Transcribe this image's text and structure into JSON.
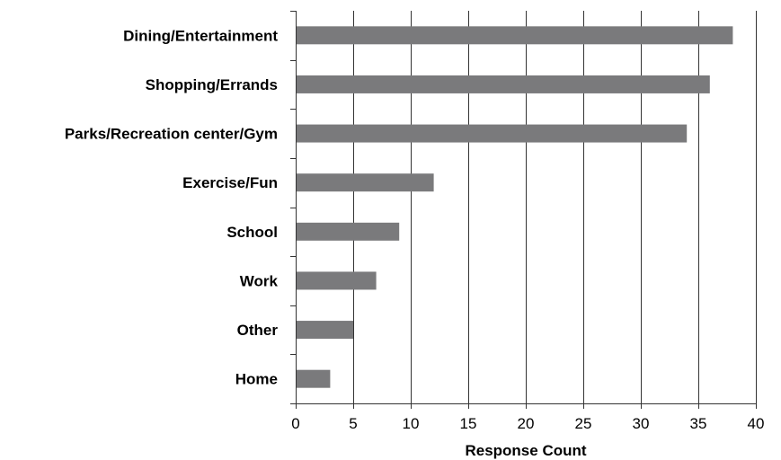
{
  "chart_data": {
    "type": "bar",
    "orientation": "horizontal",
    "title": "",
    "xlabel": "Response Count",
    "ylabel": "",
    "xlim": [
      0,
      40
    ],
    "xticks": [
      0,
      5,
      10,
      15,
      20,
      25,
      30,
      35,
      40
    ],
    "grid": "vertical",
    "legend": "none",
    "categories": [
      "Dining/Entertainment",
      "Shopping/Errands",
      "Parks/Recreation center/Gym",
      "Exercise/Fun",
      "School",
      "Work",
      "Other",
      "Home"
    ],
    "values": [
      38,
      36,
      34,
      12,
      9,
      7,
      5,
      3
    ]
  },
  "colors": {
    "bar": "#7a7a7c",
    "grid": "#333333",
    "axis": "#333333",
    "text": "#000000"
  }
}
